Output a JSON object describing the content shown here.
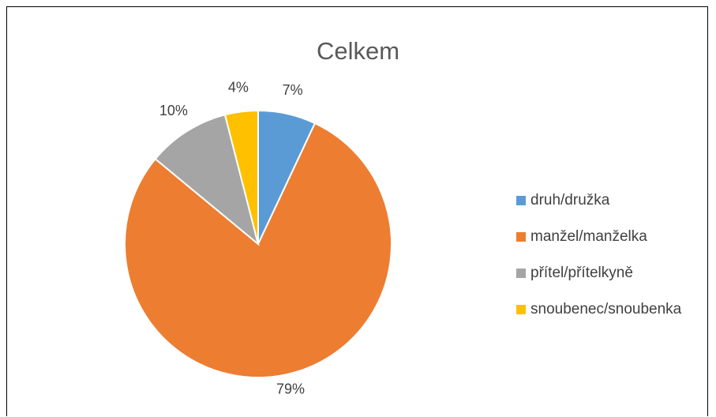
{
  "chart_data": {
    "type": "pie",
    "title": "Celkem",
    "categories": [
      "druh/družka",
      "manžel/manželka",
      "přítel/přítelkyně",
      "snoubenec/snoubenka"
    ],
    "values": [
      7,
      79,
      10,
      4
    ],
    "labels": [
      "7%",
      "79%",
      "10%",
      "4%"
    ],
    "colors": [
      "#5B9BD5",
      "#ED7D31",
      "#A5A5A5",
      "#FFC000"
    ],
    "legend": "right"
  }
}
